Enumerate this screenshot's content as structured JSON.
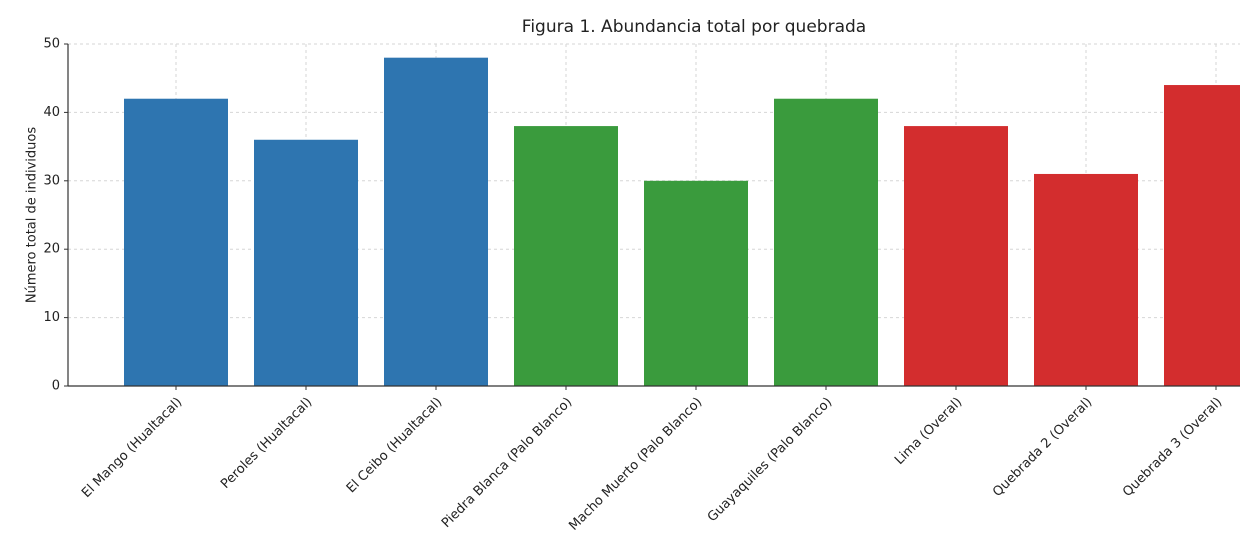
{
  "chart_data": {
    "type": "bar",
    "title": "Figura 1. Abundancia total por quebrada",
    "ylabel": "Número total de individuos",
    "categories": [
      "El Mango (Hualtacal)",
      "Peroles (Hualtacal)",
      "El Ceibo (Hualtacal)",
      "Piedra Blanca (Palo Blanco)",
      "Macho Muerto (Palo Blanco)",
      "Guayaquiles (Palo Blanco)",
      "Lima (Overal)",
      "Quebrada 2 (Overal)",
      "Quebrada 3 (Overal)"
    ],
    "values": [
      42,
      36,
      48,
      38,
      30,
      42,
      38,
      31,
      44
    ],
    "colors": [
      "#2e75b0",
      "#2e75b0",
      "#2e75b0",
      "#3a9b3d",
      "#3a9b3d",
      "#3a9b3d",
      "#d32d2e",
      "#d32d2e",
      "#d32d2e"
    ],
    "ylim": [
      0,
      50
    ],
    "yticks": [
      0,
      10,
      20,
      30,
      40,
      50
    ],
    "grid": true
  }
}
